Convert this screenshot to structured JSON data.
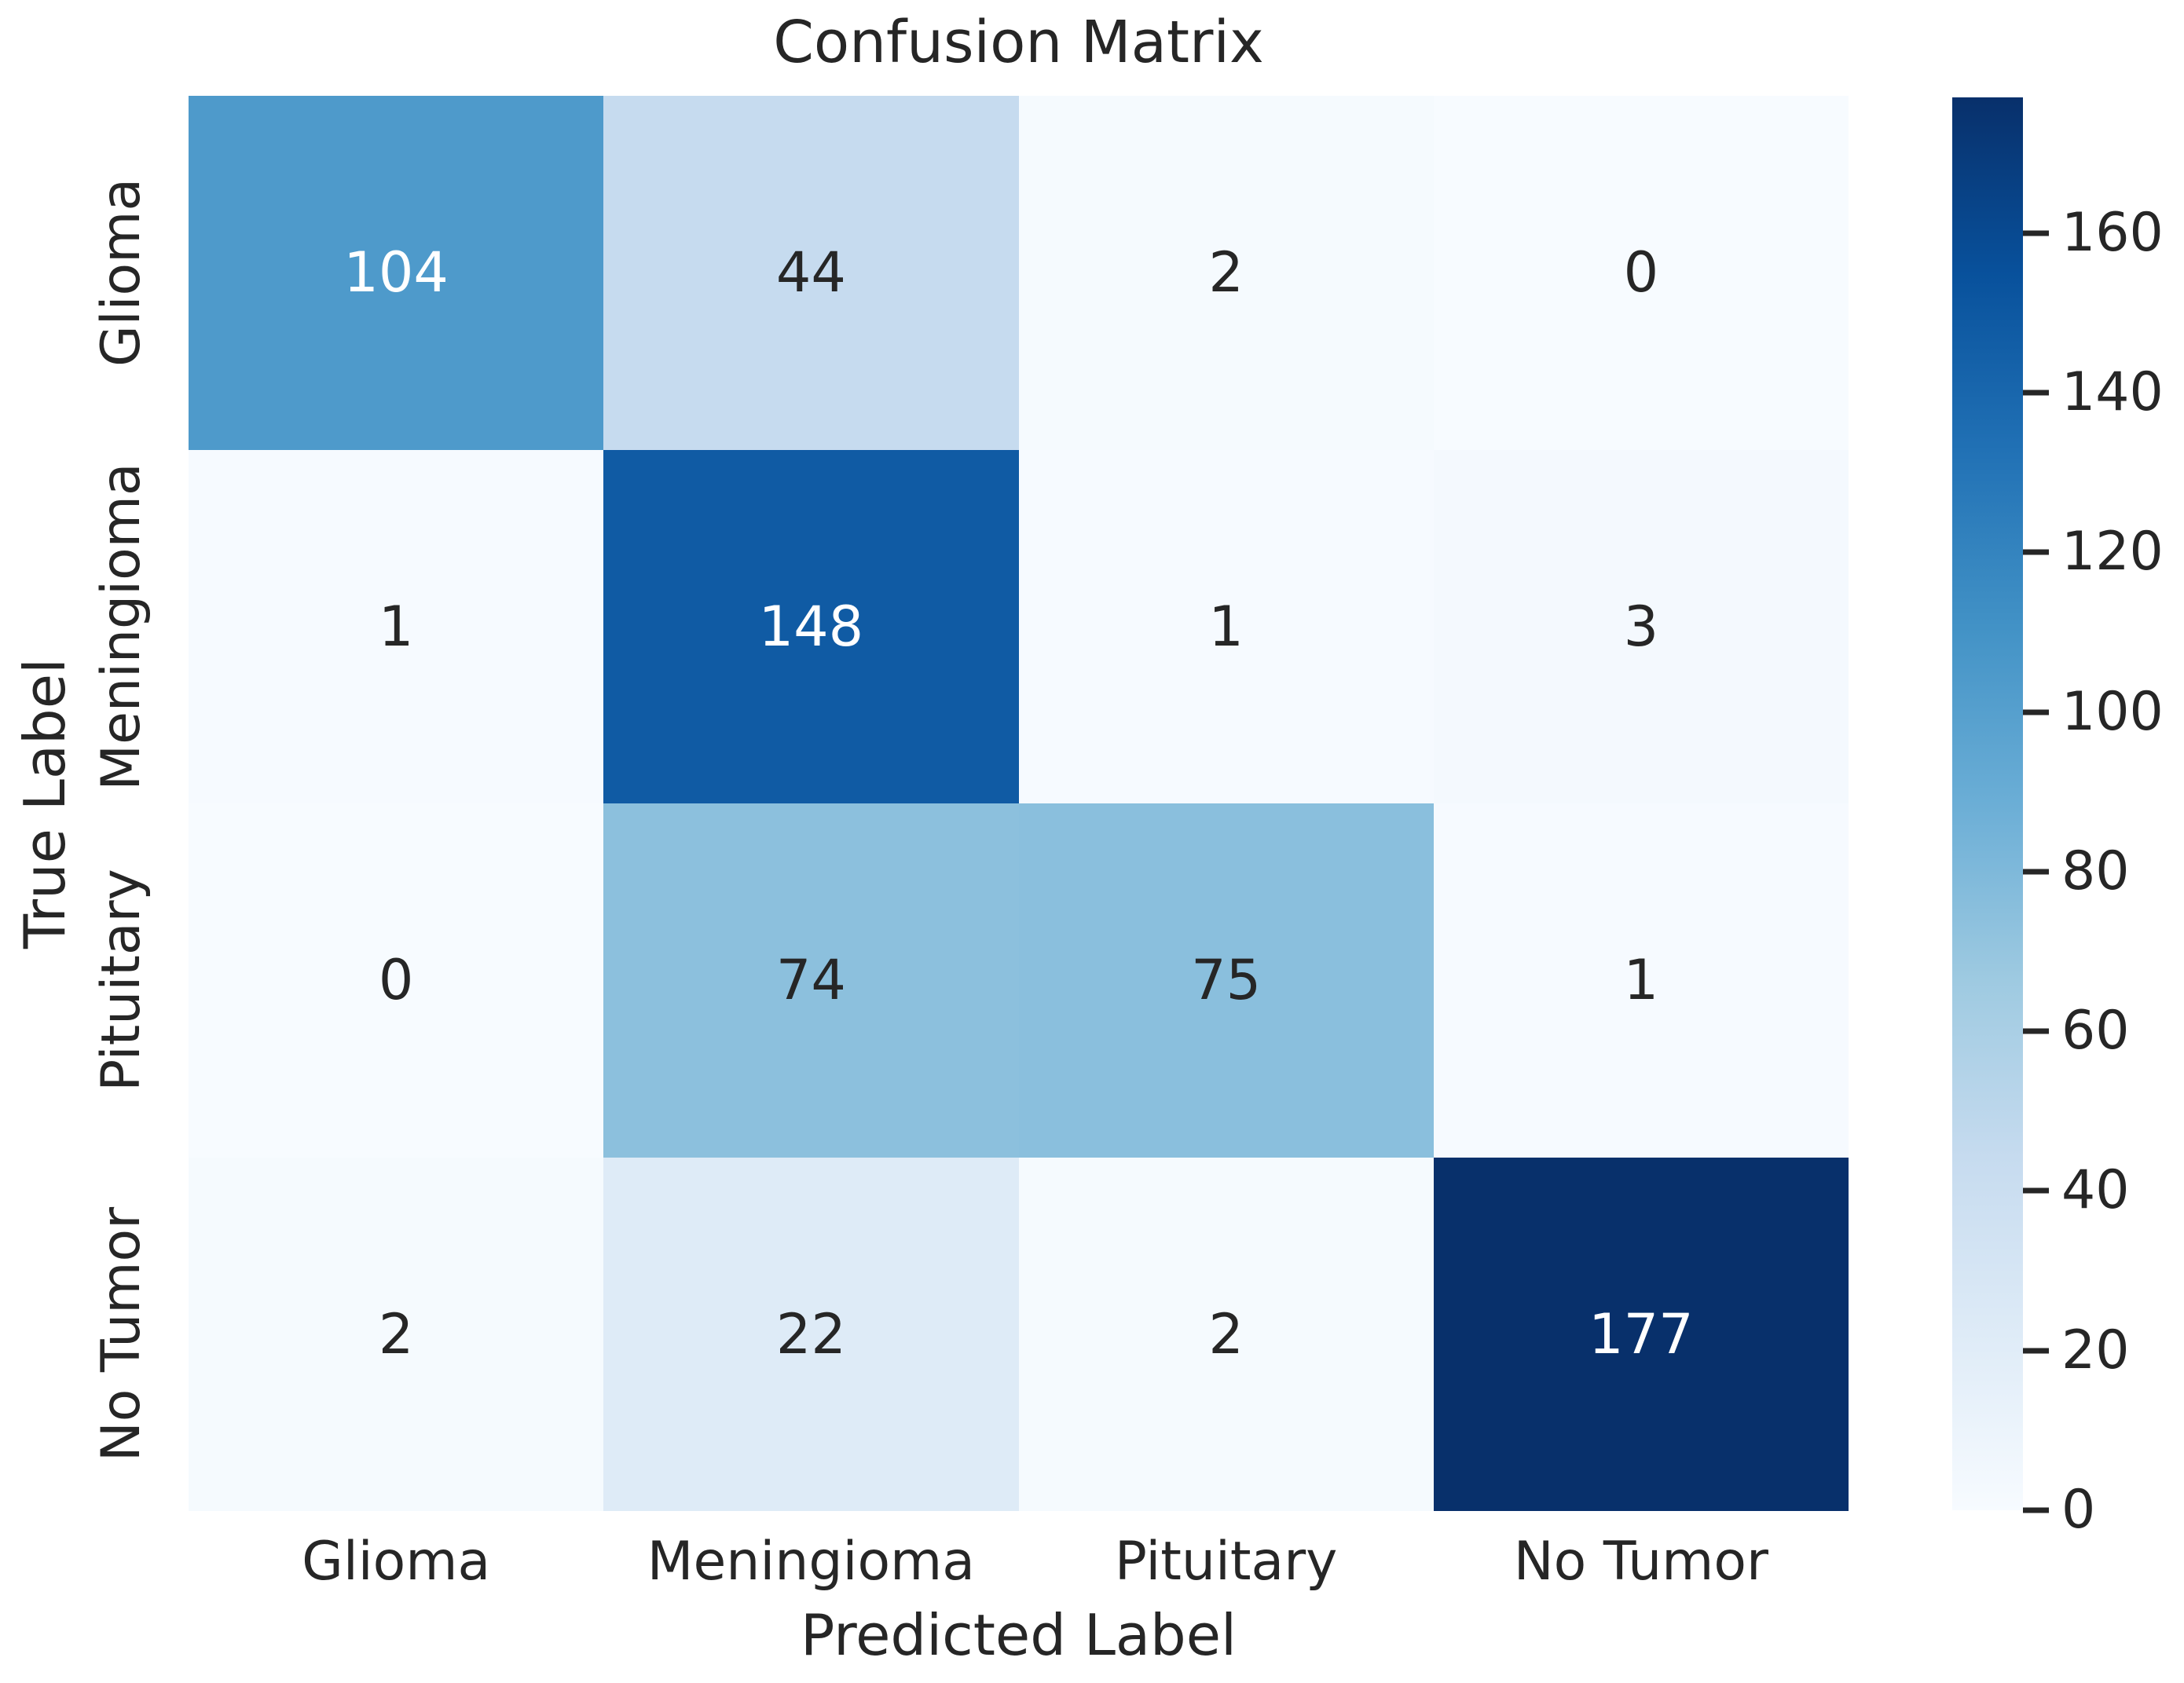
{
  "chart_data": {
    "type": "heatmap",
    "title": "Confusion Matrix",
    "xlabel": "Predicted Label",
    "ylabel": "True Label",
    "x_categories": [
      "Glioma",
      "Meningioma",
      "Pituitary",
      "No Tumor"
    ],
    "y_categories": [
      "Glioma",
      "Meningioma",
      "Pituitary",
      "No Tumor"
    ],
    "matrix": [
      [
        104,
        44,
        2,
        0
      ],
      [
        1,
        148,
        1,
        3
      ],
      [
        0,
        74,
        75,
        1
      ],
      [
        2,
        22,
        2,
        177
      ]
    ],
    "vmin": 0,
    "vmax": 177,
    "colormap": "Blues",
    "colormap_stops": [
      {
        "pos": 0.0,
        "color": "#f7fbff"
      },
      {
        "pos": 0.125,
        "color": "#deebf7"
      },
      {
        "pos": 0.25,
        "color": "#c6dbef"
      },
      {
        "pos": 0.375,
        "color": "#9ecae1"
      },
      {
        "pos": 0.5,
        "color": "#6baed6"
      },
      {
        "pos": 0.625,
        "color": "#4292c6"
      },
      {
        "pos": 0.75,
        "color": "#2171b5"
      },
      {
        "pos": 0.875,
        "color": "#08519c"
      },
      {
        "pos": 1.0,
        "color": "#08306b"
      }
    ],
    "colorbar_ticks": [
      0,
      20,
      40,
      60,
      80,
      100,
      120,
      140,
      160
    ],
    "annotation_colors": {
      "light": "#ffffff",
      "dark": "#262626"
    },
    "text_color": "#262626",
    "legend_position": "right",
    "grid": false
  }
}
